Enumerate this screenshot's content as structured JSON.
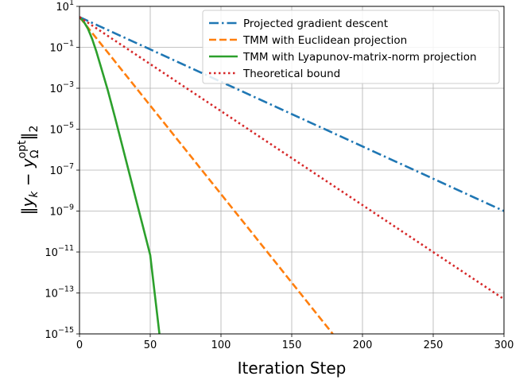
{
  "chart_data": {
    "type": "line",
    "title": "",
    "xlabel": "Iteration Step",
    "ylabel_tex": "‖y_k − y_Ω^opt‖_2",
    "ylabel_parts": {
      "norm_open": "‖",
      "y": "y",
      "k": "k",
      "minus": " − ",
      "y2": "y",
      "omega": "Ω",
      "opt": "opt",
      "norm_close": "‖",
      "two": "2"
    },
    "xlim": [
      0,
      300
    ],
    "ylim_log10": [
      -15,
      1
    ],
    "y_scale": "log",
    "grid": true,
    "legend_position": "top-right",
    "x_ticks": [
      {
        "v": 0,
        "label": "0"
      },
      {
        "v": 50,
        "label": "50"
      },
      {
        "v": 100,
        "label": "100"
      },
      {
        "v": 150,
        "label": "150"
      },
      {
        "v": 200,
        "label": "200"
      },
      {
        "v": 250,
        "label": "250"
      },
      {
        "v": 300,
        "label": "300"
      }
    ],
    "y_ticks": [
      {
        "exp": 1,
        "base": "10",
        "sup": "1"
      },
      {
        "exp": -1,
        "base": "10",
        "sup": "−1"
      },
      {
        "exp": -3,
        "base": "10",
        "sup": "−3"
      },
      {
        "exp": -5,
        "base": "10",
        "sup": "−5"
      },
      {
        "exp": -7,
        "base": "10",
        "sup": "−7"
      },
      {
        "exp": -9,
        "base": "10",
        "sup": "−9"
      },
      {
        "exp": -11,
        "base": "10",
        "sup": "−11"
      },
      {
        "exp": -13,
        "base": "10",
        "sup": "−13"
      },
      {
        "exp": -15,
        "base": "10",
        "sup": "−15"
      }
    ],
    "series": [
      {
        "name": "Projected gradient descent",
        "color": "#1f77b4",
        "style": "dashdot",
        "x": [
          0,
          300
        ],
        "y": [
          3,
          1e-09
        ]
      },
      {
        "name": "TMM with Euclidean projection",
        "color": "#ff7f0e",
        "style": "dashed",
        "x": [
          0,
          179
        ],
        "y": [
          3,
          1e-15
        ]
      },
      {
        "name": "TMM with Lyapunov-matrix-norm projection",
        "color": "#2ca02c",
        "style": "solid",
        "x": [
          0,
          3,
          6,
          9,
          12,
          15,
          20,
          25,
          30,
          35,
          40,
          45,
          50,
          56.5
        ],
        "y": [
          3,
          1.8,
          0.8,
          0.25,
          0.06,
          0.012,
          0.0008,
          4e-05,
          1.8e-06,
          8e-08,
          3.5e-09,
          1.6e-10,
          7e-12,
          1e-15
        ]
      },
      {
        "name": "Theoretical bound",
        "color": "#d62728",
        "style": "dotted",
        "x": [
          0,
          300
        ],
        "y": [
          3,
          5e-14
        ]
      }
    ]
  }
}
